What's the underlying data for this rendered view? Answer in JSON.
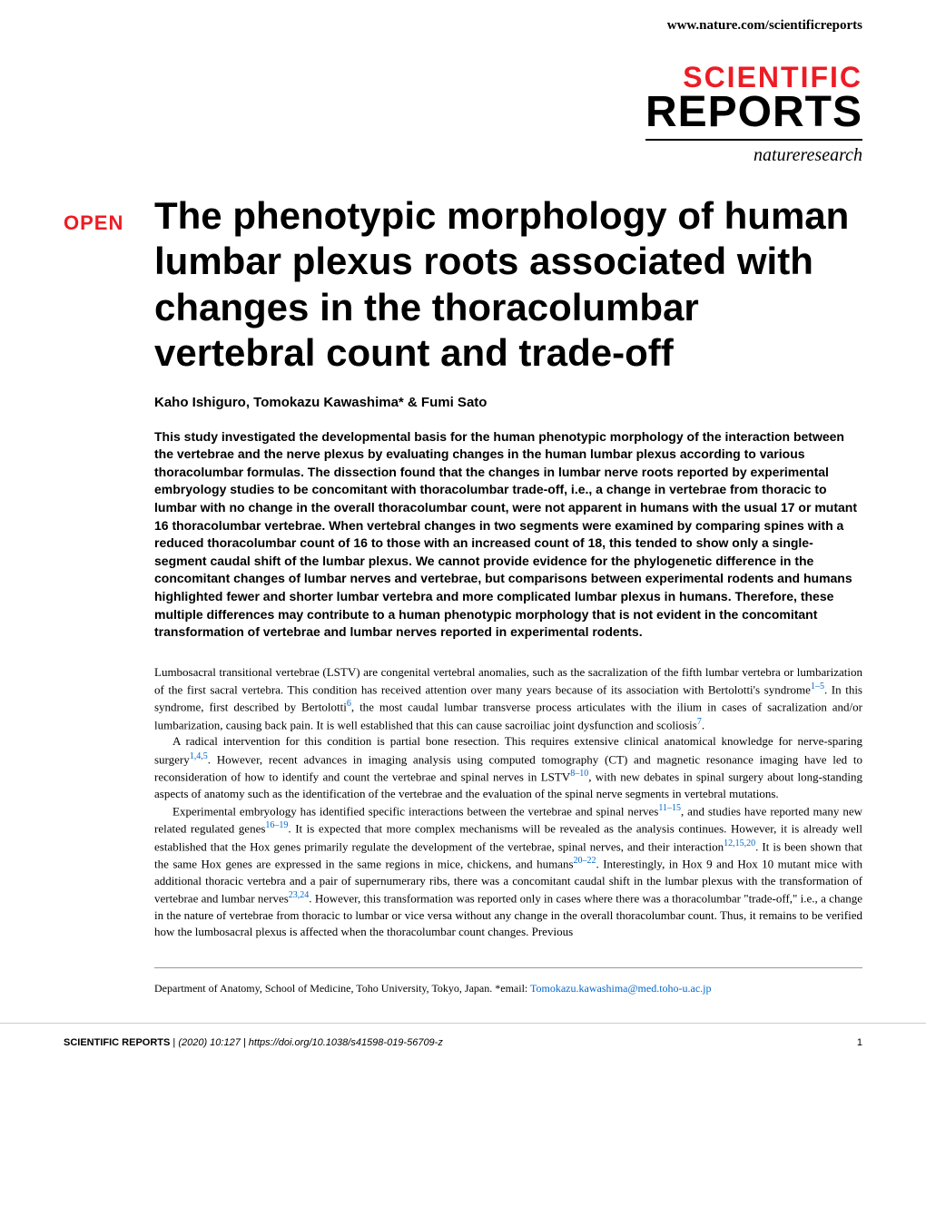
{
  "header": {
    "url": "www.nature.com/scientificreports"
  },
  "logo": {
    "line1": "SCIENTIFIC",
    "line2": "REPORTS",
    "line3": "natureresearch"
  },
  "badge": {
    "open": "OPEN"
  },
  "article": {
    "title": "The phenotypic morphology of human lumbar plexus roots associated with changes in the thoracolumbar vertebral count and trade-off",
    "authors": "Kaho Ishiguro, Tomokazu Kawashima* & Fumi Sato",
    "abstract": "This study investigated the developmental basis for the human phenotypic morphology of the interaction between the vertebrae and the nerve plexus by evaluating changes in the human lumbar plexus according to various thoracolumbar formulas. The dissection found that the changes in lumbar nerve roots reported by experimental embryology studies to be concomitant with thoracolumbar trade-off, i.e., a change in vertebrae from thoracic to lumbar with no change in the overall thoracolumbar count, were not apparent in humans with the usual 17 or mutant 16 thoracolumbar vertebrae. When vertebral changes in two segments were examined by comparing spines with a reduced thoracolumbar count of 16 to those with an increased count of 18, this tended to show only a single-segment caudal shift of the lumbar plexus. We cannot provide evidence for the phylogenetic difference in the concomitant changes of lumbar nerves and vertebrae, but comparisons between experimental rodents and humans highlighted fewer and shorter lumbar vertebra and more complicated lumbar plexus in humans. Therefore, these multiple differences may contribute to a human phenotypic morphology that is not evident in the concomitant transformation of vertebrae and lumbar nerves reported in experimental rodents.",
    "body": {
      "p1_part1": "Lumbosacral transitional vertebrae (LSTV) are congenital vertebral anomalies, such as the sacralization of the fifth lumbar vertebra or lumbarization of the first sacral vertebra. This condition has received attention over many years because of its association with Bertolotti's syndrome",
      "p1_ref1": "1–5",
      "p1_part2": ". In this syndrome, first described by Bertolotti",
      "p1_ref2": "6",
      "p1_part3": ", the most caudal lumbar transverse process articulates with the ilium in cases of sacralization and/or lumbarization, causing back pain. It is well established that this can cause sacroiliac joint dysfunction and scoliosis",
      "p1_ref3": "7",
      "p1_part4": ".",
      "p2_part1": "A radical intervention for this condition is partial bone resection. This requires extensive clinical anatomical knowledge for nerve-sparing surgery",
      "p2_ref1": "1,4,5",
      "p2_part2": ". However, recent advances in imaging analysis using computed tomography (CT) and magnetic resonance imaging have led to reconsideration of how to identify and count the vertebrae and spinal nerves in LSTV",
      "p2_ref2": "8–10",
      "p2_part3": ", with new debates in spinal surgery about long-standing aspects of anatomy such as the identification of the vertebrae and the evaluation of the spinal nerve segments in vertebral mutations.",
      "p3_part1": "Experimental embryology has identified specific interactions between the vertebrae and spinal nerves",
      "p3_ref1": "11–15",
      "p3_part2": ", and studies have reported many new related regulated genes",
      "p3_ref2": "16–19",
      "p3_part3": ". It is expected that more complex mechanisms will be revealed as the analysis continues. However, it is already well established that the Hox genes primarily regulate the development of the vertebrae, spinal nerves, and their interaction",
      "p3_ref3": "12,15,20",
      "p3_part4": ". It is been shown that the same Hox genes are expressed in the same regions in mice, chickens, and humans",
      "p3_ref4": "20–22",
      "p3_part5": ". Interestingly, in Hox 9 and Hox 10 mutant mice with additional thoracic vertebra and a pair of supernumerary ribs, there was a concomitant caudal shift in the lumbar plexus with the transformation of vertebrae and lumbar nerves",
      "p3_ref5": "23,24",
      "p3_part6": ". However, this transformation was reported only in cases where there was a thoracolumbar \"trade-off,\" i.e., a change in the nature of vertebrae from thoracic to lumbar or vice versa without any change in the overall thoracolumbar count. Thus, it remains to be verified how the lumbosacral plexus is affected when the thoracolumbar count changes. Previous"
    },
    "affiliation_text": "Department of Anatomy, School of Medicine, Toho University, Tokyo, Japan. *email: ",
    "email": "Tomokazu.kawashima@med.toho-u.ac.jp"
  },
  "footer": {
    "journal": "SCIENTIFIC REPORTS",
    "separator": " |         ",
    "citation": "(2020) 10:127  | https://doi.org/10.1038/s41598-019-56709-z",
    "page": "1"
  },
  "colors": {
    "red": "#ed1c24",
    "link": "#0066cc",
    "text": "#000000",
    "background": "#ffffff"
  }
}
